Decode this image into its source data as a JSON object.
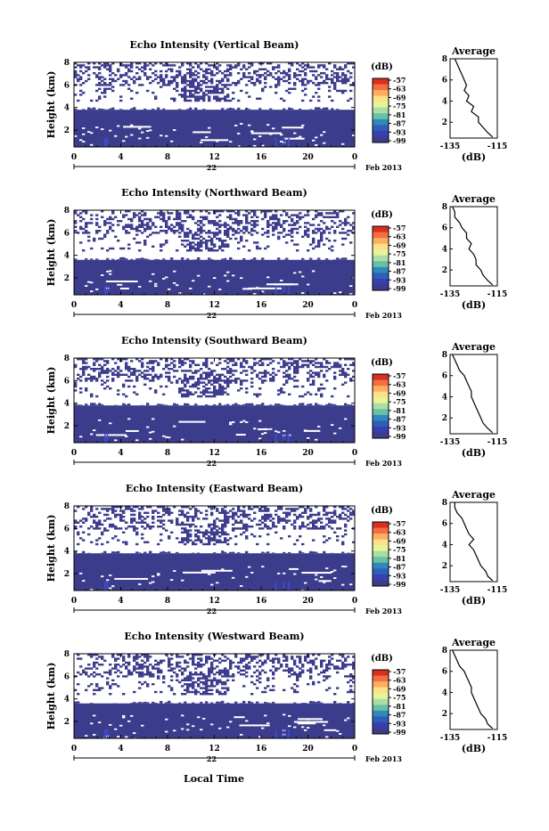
{
  "figure": {
    "xlabel_common": "Local Time",
    "date_label": "Feb 2013",
    "day_label": "22",
    "colorbar_unit": "(dB)",
    "colorbar_ticks": [
      "-57",
      "-63",
      "-69",
      "-75",
      "-81",
      "-87",
      "-93",
      "-99"
    ],
    "colorbar_colors": [
      "#d7301f",
      "#f46d43",
      "#fdae61",
      "#fee08b",
      "#e6f598",
      "#abdda4",
      "#66c2a5",
      "#3288bd",
      "#2c5fb8",
      "#3a3fb0",
      "#3c3c8c"
    ],
    "profile_title": "Average",
    "profile_xlabel": "(dB)",
    "profile_xticks": [
      "-135",
      "-115"
    ],
    "profile_yticks": [
      "2",
      "4",
      "6",
      "8"
    ],
    "heatmap_ylabel": "Height (km)",
    "heatmap_yticks": [
      "2",
      "4",
      "6",
      "8"
    ],
    "heatmap_xticks": [
      "0",
      "4",
      "8",
      "12",
      "16",
      "20",
      "0"
    ],
    "heatmap_fill": "#3c3c8c",
    "heatmap_spike": "#3b4fd8"
  },
  "chart_data": [
    {
      "type": "heatmap",
      "title": "Echo Intensity (Vertical Beam)",
      "xlabel": "Local Time",
      "ylabel": "Height (km)",
      "xlim": [
        0,
        24
      ],
      "ylim": [
        0.5,
        8
      ],
      "echo_top_km": 3.8,
      "profile": {
        "title": "Average",
        "xlabel": "(dB)",
        "xlim": [
          -135,
          -115
        ],
        "heights_km": [
          8,
          7.5,
          7,
          6.5,
          6,
          5.5,
          5,
          4.5,
          4,
          3.5,
          3,
          2.5,
          2,
          1.5,
          1,
          0.6
        ],
        "values_db": [
          -133,
          -132,
          -131,
          -130,
          -129,
          -128,
          -129,
          -127,
          -128,
          -125,
          -126,
          -123,
          -123,
          -121,
          -119,
          -117
        ]
      }
    },
    {
      "type": "heatmap",
      "title": "Echo Intensity (Northward Beam)",
      "xlabel": "Local Time",
      "ylabel": "Height (km)",
      "xlim": [
        0,
        24
      ],
      "ylim": [
        0.5,
        8
      ],
      "echo_top_km": 3.6,
      "profile": {
        "title": "Average",
        "xlabel": "(dB)",
        "xlim": [
          -135,
          -115
        ],
        "heights_km": [
          8,
          7.5,
          7,
          6.5,
          6,
          5.5,
          5,
          4.5,
          4,
          3.5,
          3,
          2.5,
          2,
          1.5,
          1,
          0.6
        ],
        "values_db": [
          -134,
          -133,
          -133,
          -131,
          -130,
          -128,
          -128,
          -126,
          -127,
          -125,
          -124,
          -124,
          -122,
          -121,
          -119,
          -117
        ]
      }
    },
    {
      "type": "heatmap",
      "title": "Echo Intensity (Southward Beam)",
      "xlabel": "Local Time",
      "ylabel": "Height (km)",
      "xlim": [
        0,
        24
      ],
      "ylim": [
        0.5,
        8
      ],
      "echo_top_km": 3.8,
      "profile": {
        "title": "Average",
        "xlabel": "(dB)",
        "xlim": [
          -135,
          -115
        ],
        "heights_km": [
          8,
          7.5,
          7,
          6.5,
          6,
          5.5,
          5,
          4.5,
          4,
          3.5,
          3,
          2.5,
          2,
          1.5,
          1,
          0.6
        ],
        "values_db": [
          -134,
          -133,
          -132,
          -131,
          -129,
          -128,
          -127,
          -126,
          -126,
          -125,
          -124,
          -123,
          -122,
          -121,
          -119,
          -117
        ]
      }
    },
    {
      "type": "heatmap",
      "title": "Echo Intensity (Eastward Beam)",
      "xlabel": "Local Time",
      "ylabel": "Height (km)",
      "xlim": [
        0,
        24
      ],
      "ylim": [
        0.5,
        8
      ],
      "echo_top_km": 3.8,
      "profile": {
        "title": "Average",
        "xlabel": "(dB)",
        "xlim": [
          -135,
          -115
        ],
        "heights_km": [
          8,
          7.5,
          7,
          6.5,
          6,
          5.5,
          5,
          4.5,
          4,
          3.5,
          3,
          2.5,
          2,
          1.5,
          1,
          0.6
        ],
        "values_db": [
          -133,
          -133,
          -132,
          -130,
          -129,
          -128,
          -127,
          -125,
          -127,
          -125,
          -124,
          -123,
          -122,
          -120,
          -119,
          -117
        ]
      }
    },
    {
      "type": "heatmap",
      "title": "Echo Intensity (Westward Beam)",
      "xlabel": "Local Time",
      "ylabel": "Height (km)",
      "xlim": [
        0,
        24
      ],
      "ylim": [
        0.5,
        8
      ],
      "echo_top_km": 3.6,
      "profile": {
        "title": "Average",
        "xlabel": "(dB)",
        "xlim": [
          -135,
          -115
        ],
        "heights_km": [
          8,
          7.5,
          7,
          6.5,
          6,
          5.5,
          5,
          4.5,
          4,
          3.5,
          3,
          2.5,
          2,
          1.5,
          1,
          0.6
        ],
        "values_db": [
          -134,
          -133,
          -132,
          -131,
          -129,
          -128,
          -127,
          -126,
          -126,
          -125,
          -124,
          -123,
          -122,
          -120,
          -119,
          -117
        ]
      }
    }
  ]
}
